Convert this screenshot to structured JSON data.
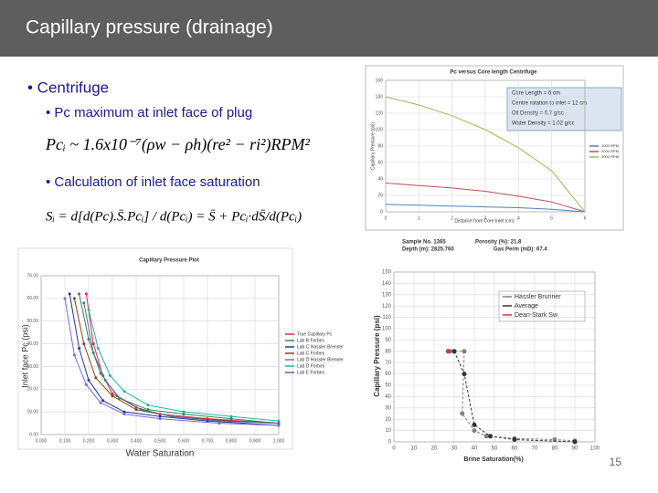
{
  "header": {
    "title": "Capillary pressure (drainage)"
  },
  "bullets": {
    "centrifuge": "• Centrifuge",
    "pc_max": "• Pc maximum at inlet face of plug",
    "formula_1": "Pcᵢ ~ 1.6x10⁻⁷(ρw − ρh)(re² − ri²)RPM²",
    "inlet_sat": "• Calculation of inlet face saturation",
    "formula_2": "Sᵢ = d[d(Pc).S̄.Pcᵢ] / d(Pcᵢ) = S̄ + Pcᵢ·dS̄/d(Pcᵢ)"
  },
  "info_box": [
    "Core Length = 6 cm",
    "Centre rotation to inlet = 12 cm",
    "Oil Density = 0.7 g/cc",
    "Water Density = 1.02 g/cc"
  ],
  "sample_info": [
    "Sample No. 1365",
    "Porosity (%): 21.8",
    "Depth (m): 2825.760",
    "Gas Perm (mD): 67.4"
  ],
  "page_number": "15",
  "charts": [
    {
      "type": "line",
      "title": "Pc versus Core length Centrifuge",
      "x_label": "Distance from Core Inlet (cm)",
      "y_label": "Capillary Pressure (psi)",
      "xlim": [
        0,
        6
      ],
      "ylim": [
        0,
        160
      ],
      "xticks": [
        0,
        1,
        2,
        3,
        4,
        5,
        6
      ],
      "yticks": [
        0,
        20,
        40,
        60,
        80,
        100,
        120,
        140,
        160
      ],
      "grid": true,
      "markers": false,
      "series": [
        {
          "name": "1000 RPM",
          "color": "#4f81bd",
          "x": [
            0,
            1,
            2,
            3,
            4,
            5,
            6
          ],
          "values": [
            9,
            8,
            7,
            6,
            5,
            3,
            0
          ]
        },
        {
          "name": "2000 RPM",
          "color": "#c0504d",
          "x": [
            0,
            1,
            2,
            3,
            4,
            5,
            6
          ],
          "values": [
            35,
            32,
            29,
            25,
            19,
            12,
            0
          ]
        },
        {
          "name": "3000 RPM",
          "color": "#9bbb59",
          "x": [
            0,
            1,
            2,
            3,
            4,
            5,
            6
          ],
          "values": [
            140,
            130,
            117,
            100,
            78,
            50,
            0
          ]
        }
      ]
    },
    {
      "type": "line",
      "title": "Capillary Pressure Plot",
      "x_label": "Water Saturation",
      "y_label": "Inlet face Pc (psi)",
      "xlim": [
        0,
        1
      ],
      "ylim": [
        0,
        70
      ],
      "xticks": [
        {
          "value": 0,
          "label": "0.000"
        },
        {
          "value": 0.1,
          "label": "0.100"
        },
        {
          "value": 0.2,
          "label": "0.200"
        },
        {
          "value": 0.3,
          "label": "0.300"
        },
        {
          "value": 0.4,
          "label": "0.400"
        },
        {
          "value": 0.5,
          "label": "0.500"
        },
        {
          "value": 0.6,
          "label": "0.600"
        },
        {
          "value": 0.7,
          "label": "0.700"
        },
        {
          "value": 0.8,
          "label": "0.800"
        },
        {
          "value": 0.9,
          "label": "0.900"
        },
        {
          "value": 1,
          "label": "1.000"
        }
      ],
      "yticks": [
        {
          "value": 0,
          "label": "0.00"
        },
        {
          "value": 10,
          "label": "10.00"
        },
        {
          "value": 20,
          "label": "20.00"
        },
        {
          "value": 30,
          "label": "30.00"
        },
        {
          "value": 40,
          "label": "40.00"
        },
        {
          "value": 50,
          "label": "50.00"
        },
        {
          "value": 60,
          "label": "60.00"
        },
        {
          "value": 70,
          "label": "70.00"
        }
      ],
      "grid": true,
      "markers": true,
      "series": [
        {
          "name": "True Capillary Pc",
          "color": "#e8245a",
          "x": [
            0.19,
            0.22,
            0.26,
            0.3,
            0.4,
            0.5,
            0.7,
            1.0
          ],
          "values": [
            62,
            40,
            26,
            18,
            12,
            9,
            7,
            5
          ]
        },
        {
          "name": "Lab B Forbes",
          "color": "#2e8b57",
          "x": [
            0.18,
            0.22,
            0.27,
            0.33,
            0.45,
            0.6,
            0.8,
            1.0
          ],
          "values": [
            58,
            36,
            24,
            16,
            11,
            9,
            7,
            5
          ]
        },
        {
          "name": "Lab C Hassler Brenner",
          "color": "#1f3a93",
          "x": [
            0.12,
            0.16,
            0.2,
            0.26,
            0.35,
            0.5,
            0.7,
            1.0
          ],
          "values": [
            62,
            38,
            24,
            15,
            10,
            8,
            6,
            4
          ]
        },
        {
          "name": "Lab C Forbes",
          "color": "#8b4513",
          "x": [
            0.14,
            0.18,
            0.23,
            0.3,
            0.4,
            0.55,
            0.8,
            1.0
          ],
          "values": [
            60,
            40,
            25,
            17,
            11,
            8,
            6,
            5
          ]
        },
        {
          "name": "Lab D Hassler Brenner",
          "color": "#7b68ee",
          "x": [
            0.1,
            0.14,
            0.19,
            0.25,
            0.35,
            0.5,
            0.75,
            1.0
          ],
          "values": [
            60,
            35,
            22,
            14,
            9,
            7,
            5,
            4
          ]
        },
        {
          "name": "Lab D Forbes",
          "color": "#20b2aa",
          "x": [
            0.2,
            0.24,
            0.29,
            0.35,
            0.45,
            0.6,
            0.8,
            1.0
          ],
          "values": [
            55,
            38,
            26,
            19,
            13,
            10,
            8,
            6
          ]
        },
        {
          "name": "Lab E Forbes",
          "color": "#556b8b",
          "x": [
            0.16,
            0.2,
            0.25,
            0.32,
            0.42,
            0.55,
            0.75,
            1.0
          ],
          "values": [
            62,
            42,
            27,
            17,
            11,
            8,
            6,
            5
          ]
        }
      ]
    },
    {
      "type": "line",
      "x_label": "Brine Saturation(%)",
      "y_label": "Capillary Pressure (psi)",
      "xlim": [
        0,
        100
      ],
      "ylim": [
        0,
        150
      ],
      "xticks": [
        0,
        10,
        20,
        30,
        40,
        50,
        60,
        70,
        80,
        90,
        100
      ],
      "yticks": [
        0,
        10,
        20,
        30,
        40,
        50,
        60,
        70,
        80,
        90,
        100,
        110,
        120,
        130,
        140,
        150
      ],
      "grid": true,
      "markers": true,
      "series": [
        {
          "name": "Hassler Brunner",
          "color": "#808080",
          "x": [
            28,
            35,
            34,
            40,
            46,
            60,
            80,
            90
          ],
          "values": [
            80,
            80,
            25,
            10,
            5,
            3,
            2,
            1
          ]
        },
        {
          "name": "Average",
          "color": "#333333",
          "x": [
            30,
            35,
            40,
            48,
            60,
            90
          ],
          "values": [
            80,
            60,
            15,
            5,
            2,
            0
          ]
        },
        {
          "name": "Dean-Stark Sw",
          "color": "#e03030",
          "x": [
            27
          ],
          "values": [
            80
          ]
        }
      ]
    }
  ]
}
